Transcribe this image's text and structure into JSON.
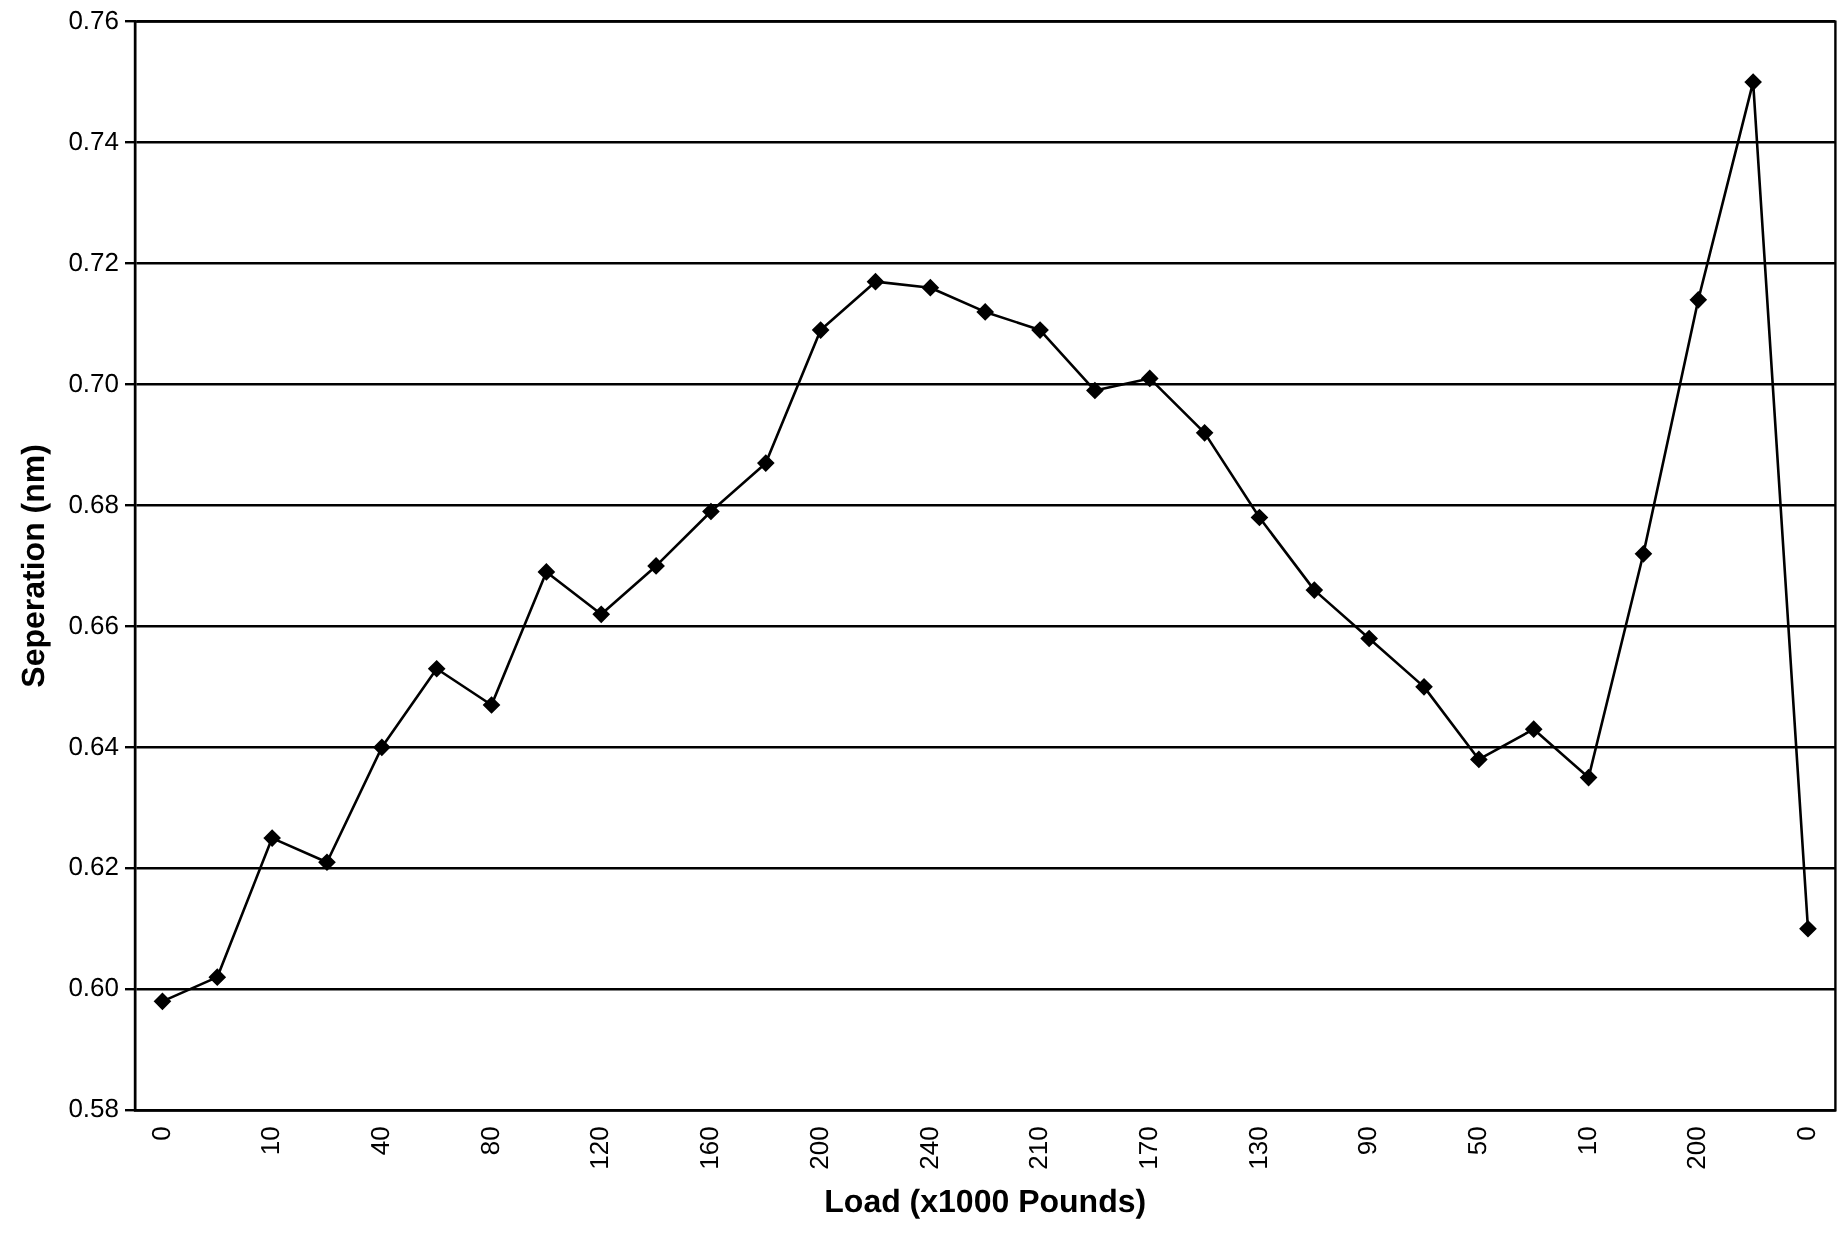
{
  "chart_data": {
    "type": "line",
    "xlabel": "Load (x1000 Pounds)",
    "ylabel": "Seperation (nm)",
    "categories": [
      "0",
      null,
      "10",
      null,
      "40",
      null,
      "80",
      null,
      "120",
      null,
      "160",
      null,
      "200",
      null,
      "240",
      null,
      "210",
      null,
      "170",
      null,
      "130",
      null,
      "90",
      null,
      "50",
      null,
      "10",
      null,
      "200",
      null,
      "0"
    ],
    "series": [
      {
        "color": "#000000",
        "values": [
          0.598,
          0.602,
          0.625,
          0.621,
          0.64,
          0.653,
          0.647,
          0.669,
          0.662,
          0.67,
          0.679,
          0.687,
          0.709,
          0.717,
          0.716,
          0.712,
          0.709,
          0.699,
          0.701,
          0.692,
          0.678,
          0.666,
          0.658,
          0.65,
          0.638,
          0.643,
          0.635,
          0.672,
          0.714,
          0.75,
          0.61
        ]
      }
    ],
    "ylim": [
      0.58,
      0.76
    ],
    "yticks": [
      {
        "value": 0.58,
        "label": "0.58"
      },
      {
        "value": 0.6,
        "label": "0.60"
      },
      {
        "value": 0.62,
        "label": "0.62"
      },
      {
        "value": 0.64,
        "label": "0.64"
      },
      {
        "value": 0.66,
        "label": "0.66"
      },
      {
        "value": 0.68,
        "label": "0.68"
      },
      {
        "value": 0.7,
        "label": "0.70"
      },
      {
        "value": 0.72,
        "label": "0.72"
      },
      {
        "value": 0.74,
        "label": "0.74"
      },
      {
        "value": 0.76,
        "label": "0.76"
      }
    ],
    "grid": "y",
    "legend": false,
    "marker": "diamond",
    "line_style": "solid"
  }
}
